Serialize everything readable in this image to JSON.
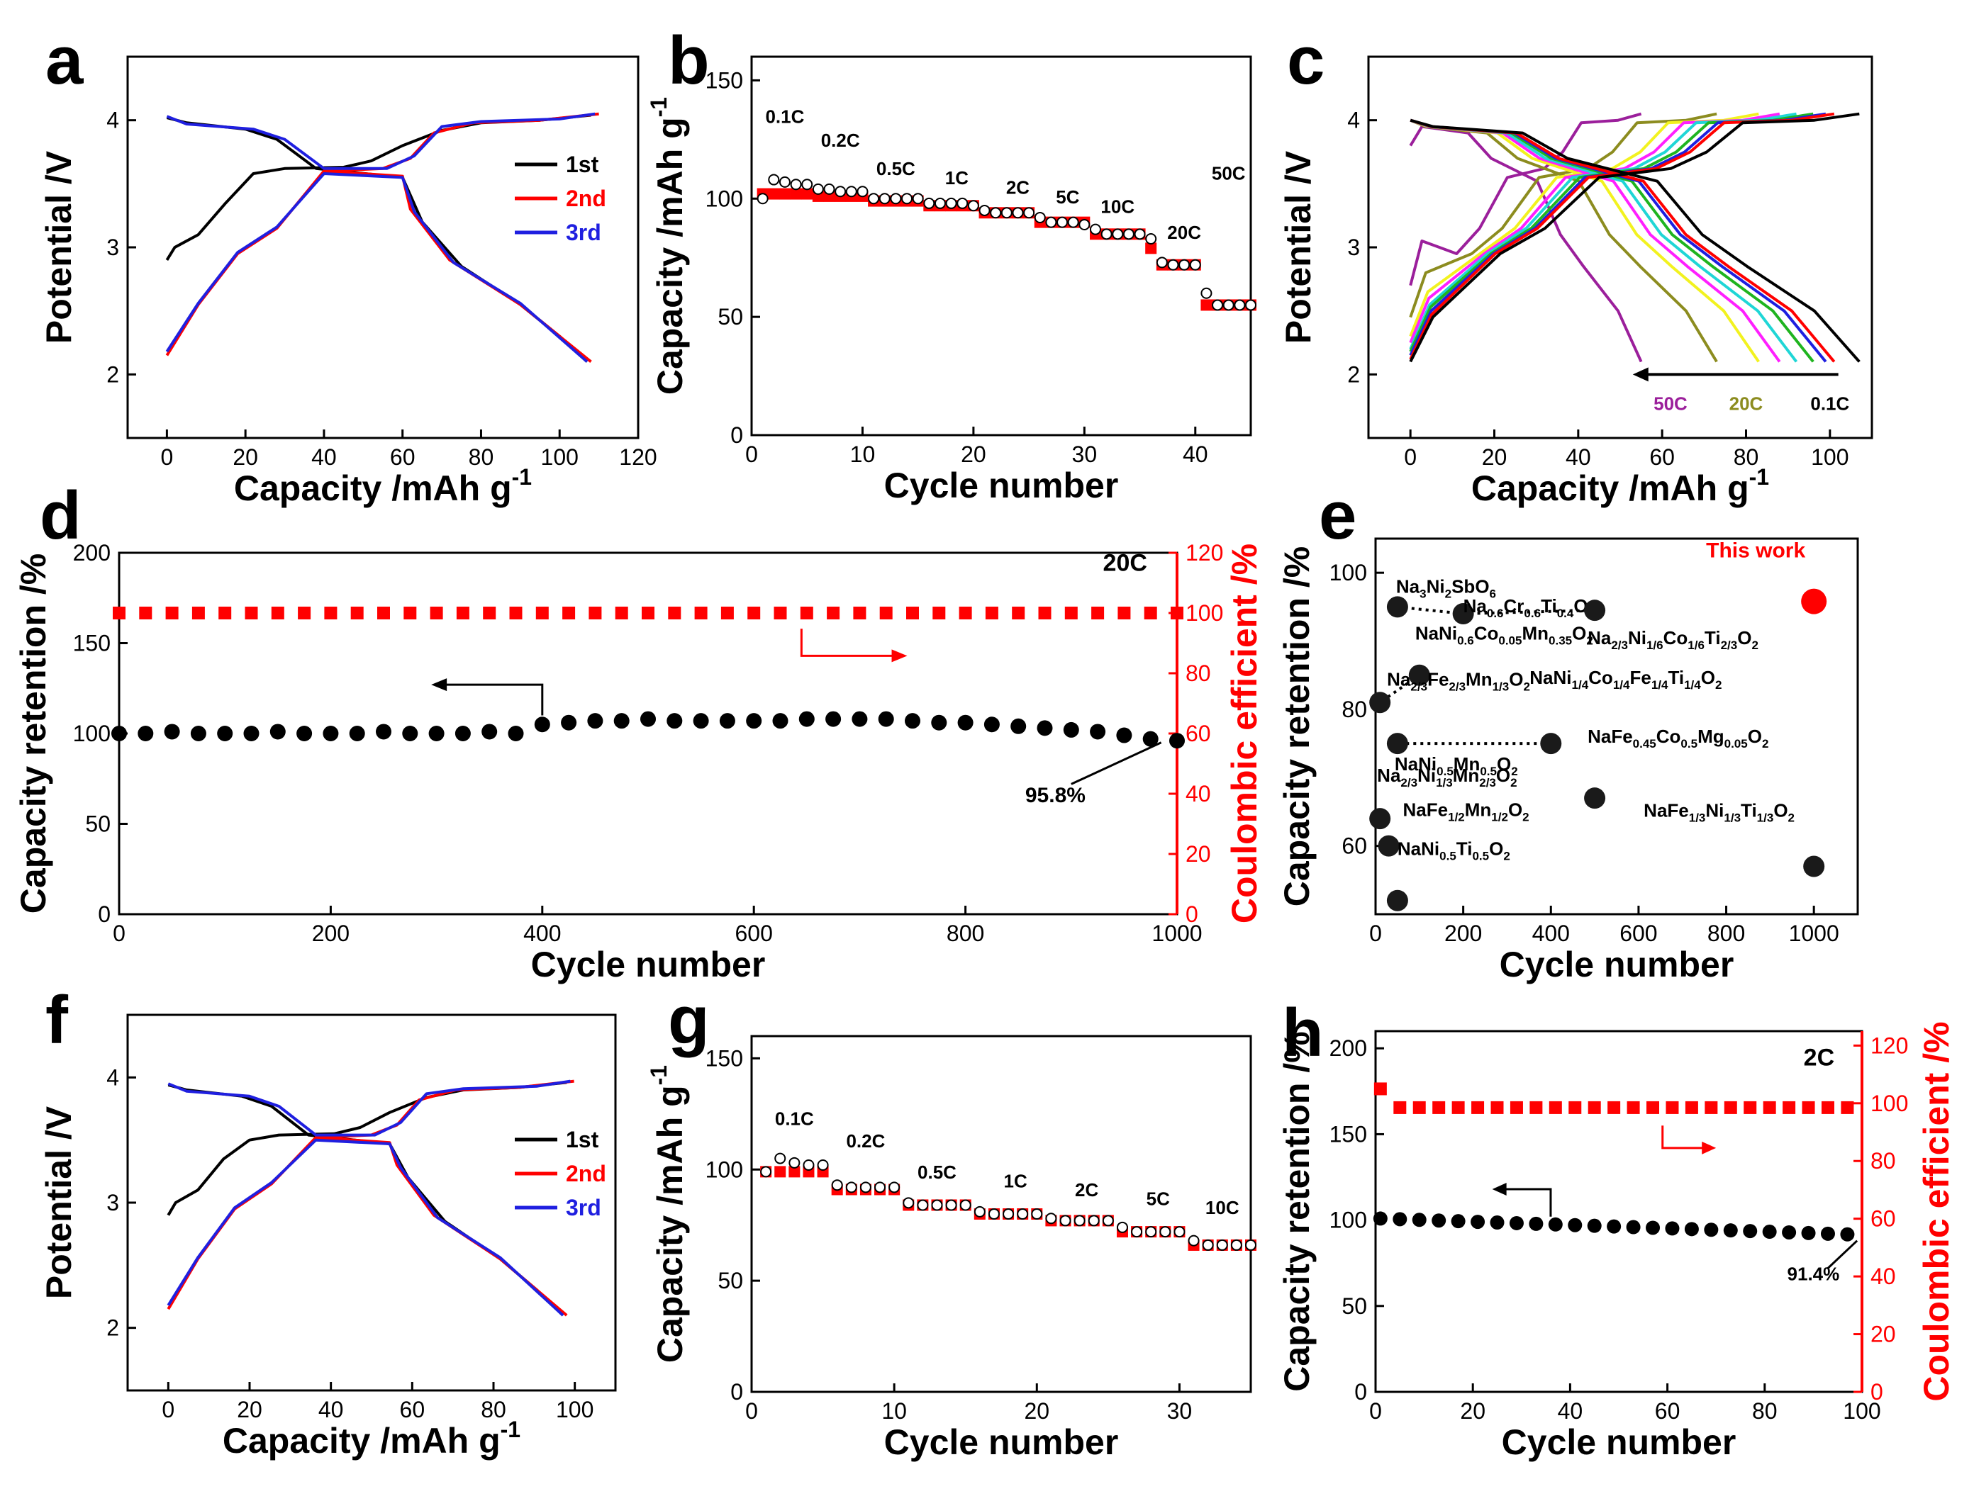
{
  "colors": {
    "black": "#000000",
    "red": "#ff0000",
    "blue": "#1f1fe0",
    "purple": "#9b1f9b",
    "olive": "#8c8c1f",
    "yellow": "#f2f21f",
    "magenta": "#ff1fff",
    "cyan": "#1fd6d6",
    "green": "#1fb41f"
  },
  "chart_data": [
    {
      "id": "a",
      "type": "line",
      "letter": "a",
      "title": "",
      "xlabel": "Capacity /mAh g",
      "xlabel_sup": "-1",
      "ylabel": "Potential /V",
      "xlim": [
        -10,
        120
      ],
      "ylim": [
        1.5,
        4.5
      ],
      "xticks": [
        0,
        20,
        40,
        60,
        80,
        100,
        120
      ],
      "yticks": [
        2,
        3,
        4
      ],
      "legend": [
        "1st",
        "2nd",
        "3rd"
      ],
      "series": [
        {
          "name": "1st",
          "color": "#000000",
          "points": [
            [
              0,
              2.9
            ],
            [
              2,
              3.0
            ],
            [
              8,
              3.1
            ],
            [
              15,
              3.35
            ],
            [
              22,
              3.58
            ],
            [
              30,
              3.62
            ],
            [
              45,
              3.63
            ],
            [
              52,
              3.68
            ],
            [
              60,
              3.8
            ],
            [
              70,
              3.92
            ],
            [
              80,
              3.98
            ],
            [
              95,
              4.0
            ],
            [
              108,
              4.04
            ]
          ]
        },
        {
          "name": "1st-d",
          "color": "#000000",
          "points": [
            [
              0,
              4.02
            ],
            [
              5,
              3.98
            ],
            [
              20,
              3.93
            ],
            [
              28,
              3.85
            ],
            [
              38,
              3.62
            ],
            [
              60,
              3.55
            ],
            [
              65,
              3.2
            ],
            [
              75,
              2.85
            ],
            [
              90,
              2.55
            ],
            [
              100,
              2.3
            ],
            [
              107,
              2.1
            ]
          ]
        },
        {
          "name": "2nd",
          "color": "#ff0000",
          "points": [
            [
              0,
              2.15
            ],
            [
              8,
              2.55
            ],
            [
              18,
              2.95
            ],
            [
              28,
              3.15
            ],
            [
              40,
              3.6
            ],
            [
              60,
              3.56
            ],
            [
              62,
              3.3
            ],
            [
              72,
              2.9
            ],
            [
              90,
              2.55
            ],
            [
              100,
              2.3
            ],
            [
              108,
              2.1
            ]
          ]
        },
        {
          "name": "2nd-c",
          "color": "#ff0000",
          "points": [
            [
              40,
              3.6
            ],
            [
              55,
              3.62
            ],
            [
              62,
              3.7
            ],
            [
              68,
              3.9
            ],
            [
              78,
              3.98
            ],
            [
              95,
              4.0
            ],
            [
              110,
              4.05
            ]
          ]
        },
        {
          "name": "3rd",
          "color": "#1f1fe0",
          "points": [
            [
              0,
              2.18
            ],
            [
              8,
              2.56
            ],
            [
              18,
              2.96
            ],
            [
              28,
              3.16
            ],
            [
              40,
              3.58
            ],
            [
              60,
              3.55
            ],
            [
              63,
              3.28
            ],
            [
              73,
              2.88
            ],
            [
              90,
              2.56
            ],
            [
              107,
              2.1
            ]
          ]
        },
        {
          "name": "3rd-c",
          "color": "#1f1fe0",
          "points": [
            [
              0,
              4.03
            ],
            [
              5,
              3.97
            ],
            [
              22,
              3.93
            ],
            [
              30,
              3.85
            ],
            [
              40,
              3.62
            ],
            [
              56,
              3.62
            ],
            [
              63,
              3.72
            ],
            [
              70,
              3.95
            ],
            [
              80,
              3.99
            ],
            [
              100,
              4.01
            ],
            [
              109,
              4.05
            ]
          ]
        }
      ]
    },
    {
      "id": "b",
      "type": "scatter",
      "letter": "b",
      "xlabel": "Cycle number",
      "ylabel": "Capacity /mAh g",
      "ylabel_sup": "-1",
      "xlim": [
        0,
        45
      ],
      "ylim": [
        0,
        160
      ],
      "xticks": [
        0,
        10,
        20,
        30,
        40
      ],
      "yticks": [
        0,
        50,
        100,
        150
      ],
      "rate_labels": [
        [
          "0.1C",
          3,
          132
        ],
        [
          "0.2C",
          8,
          122
        ],
        [
          "0.5C",
          13,
          110
        ],
        [
          "1C",
          18.5,
          106
        ],
        [
          "2C",
          24,
          102
        ],
        [
          "5C",
          28.5,
          98
        ],
        [
          "10C",
          33,
          94
        ],
        [
          "20C",
          39,
          83
        ],
        [
          "50C",
          43,
          108
        ]
      ],
      "discharge": [
        102,
        102,
        102,
        102,
        102,
        101,
        101,
        101,
        101,
        101,
        99,
        99,
        99,
        99,
        99,
        97,
        97,
        97,
        97,
        97,
        94,
        94,
        94,
        94,
        94,
        90,
        90,
        90,
        90,
        90,
        85,
        85,
        85,
        85,
        85,
        79,
        72,
        72,
        72,
        72,
        55,
        55,
        55,
        55,
        55
      ],
      "charge": [
        100,
        108,
        107,
        106,
        106,
        104,
        104,
        103,
        103,
        103,
        100,
        100,
        100,
        100,
        100,
        98,
        98,
        98,
        98,
        97,
        95,
        94,
        94,
        94,
        94,
        92,
        90,
        90,
        90,
        89,
        87,
        85,
        85,
        85,
        85,
        83,
        73,
        72,
        72,
        72,
        60,
        55,
        55,
        55,
        55
      ]
    },
    {
      "id": "c",
      "type": "line",
      "letter": "c",
      "xlabel": "Capacity /mAh g",
      "xlabel_sup": "-1",
      "ylabel": "Potential /V",
      "xlim": [
        -10,
        110
      ],
      "ylim": [
        1.5,
        4.5
      ],
      "xticks": [
        0,
        20,
        40,
        60,
        80,
        100
      ],
      "yticks": [
        2,
        3,
        4
      ],
      "rate_labels": [
        "50C",
        "20C",
        "0.1C"
      ],
      "curves": [
        {
          "color": "#9b1f9b",
          "cap": 55,
          "start": 2.7
        },
        {
          "color": "#8c8c1f",
          "cap": 73,
          "start": 2.45
        },
        {
          "color": "#f2f21f",
          "cap": 83,
          "start": 2.3
        },
        {
          "color": "#ff1fff",
          "cap": 88,
          "start": 2.25
        },
        {
          "color": "#1fd6d6",
          "cap": 92,
          "start": 2.2
        },
        {
          "color": "#1fb41f",
          "cap": 96,
          "start": 2.18
        },
        {
          "color": "#1f1fe0",
          "cap": 99,
          "start": 2.15
        },
        {
          "color": "#ff0000",
          "cap": 101,
          "start": 2.12
        },
        {
          "color": "#000000",
          "cap": 107,
          "start": 2.1
        }
      ]
    },
    {
      "id": "d",
      "type": "scatter",
      "letter": "d",
      "xlabel": "Cycle number",
      "ylabel": "Capacity retention /%",
      "y2label": "Coulombic efficient /%",
      "xlim": [
        0,
        1000
      ],
      "ylim": [
        0,
        200
      ],
      "y2lim": [
        0,
        120
      ],
      "xticks": [
        0,
        200,
        400,
        600,
        800,
        1000
      ],
      "yticks": [
        0,
        50,
        100,
        150,
        200
      ],
      "y2ticks": [
        0,
        20,
        40,
        60,
        80,
        100,
        120
      ],
      "rate": "20C",
      "annotation": "95.8%",
      "retention": [
        [
          0,
          100
        ],
        [
          25,
          100
        ],
        [
          50,
          101
        ],
        [
          75,
          100
        ],
        [
          100,
          100
        ],
        [
          125,
          100
        ],
        [
          150,
          101
        ],
        [
          175,
          100
        ],
        [
          200,
          100
        ],
        [
          225,
          100
        ],
        [
          250,
          101
        ],
        [
          275,
          100
        ],
        [
          300,
          100
        ],
        [
          325,
          100
        ],
        [
          350,
          101
        ],
        [
          375,
          100
        ],
        [
          400,
          105
        ],
        [
          425,
          106
        ],
        [
          450,
          107
        ],
        [
          475,
          107
        ],
        [
          500,
          108
        ],
        [
          525,
          107
        ],
        [
          550,
          107
        ],
        [
          575,
          107
        ],
        [
          600,
          107
        ],
        [
          625,
          107
        ],
        [
          650,
          108
        ],
        [
          675,
          108
        ],
        [
          700,
          108
        ],
        [
          725,
          108
        ],
        [
          750,
          107
        ],
        [
          775,
          106
        ],
        [
          800,
          106
        ],
        [
          825,
          105
        ],
        [
          850,
          104
        ],
        [
          875,
          103
        ],
        [
          900,
          102
        ],
        [
          925,
          101
        ],
        [
          950,
          99
        ],
        [
          975,
          97
        ],
        [
          1000,
          96
        ]
      ],
      "efficiency_value": 100
    },
    {
      "id": "e",
      "type": "scatter",
      "letter": "e",
      "xlabel": "Cycle number",
      "ylabel": "Capacity retention /%",
      "xlim": [
        0,
        1100
      ],
      "ylim": [
        50,
        105
      ],
      "xticks": [
        0,
        200,
        400,
        600,
        800,
        1000
      ],
      "yticks": [
        60,
        80,
        100
      ],
      "points": [
        {
          "x": 50,
          "y": 95,
          "label": "Na3Ni2SbO6",
          "html": [
            "Na",
            "3",
            "Ni",
            "2",
            "SbO",
            "6"
          ]
        },
        {
          "x": 200,
          "y": 94,
          "label": "Na0.6Cr0.6Ti0.4O2",
          "html": [
            "Na",
            "0.6",
            "Cr",
            "0.6",
            "Ti",
            "0.4",
            "O",
            "2"
          ]
        },
        {
          "x": 500,
          "y": 94.5,
          "label": "Na2/3Ni1/6Co1/6Ti2/3O2",
          "html": [
            "Na",
            "2/3",
            "Ni",
            "1/6",
            "Co",
            "1/6",
            "Ti",
            "2/3",
            "O",
            "2"
          ]
        },
        {
          "x": 100,
          "y": 85,
          "label": "NaNi0.6Co0.05Mn0.35O2",
          "html": [
            "NaNi",
            "0.6",
            "Co",
            "0.05",
            "Mn",
            "0.35",
            "O",
            "2"
          ]
        },
        {
          "x": 10,
          "y": 81,
          "label": "Na2/3Fe2/3Mn1/3O2",
          "html": [
            "Na",
            "2/3",
            "Fe",
            "2/3",
            "Mn",
            "1/3",
            "O",
            "2"
          ]
        },
        {
          "x": 400,
          "y": 75,
          "label": "NaNi1/4Co1/4Fe1/4Ti1/4O2",
          "html": [
            "NaNi",
            "1/4",
            "Co",
            "1/4",
            "Fe",
            "1/4",
            "Ti",
            "1/4",
            "O",
            "2"
          ]
        },
        {
          "x": 50,
          "y": 75,
          "label": "NaNi0.5Mn0.5O2",
          "html": [
            "NaNi",
            "0.5",
            "Mn",
            "0.5",
            "O",
            "2"
          ]
        },
        {
          "x": 500,
          "y": 67,
          "label": "NaFe0.45Co0.5Mg0.05O2",
          "html": [
            "NaFe",
            "0.45",
            "Co",
            "0.5",
            "Mg",
            "0.05",
            "O",
            "2"
          ]
        },
        {
          "x": 10,
          "y": 64,
          "label": "Na2/3Ni1/3Mn2/3O2",
          "html": [
            "Na",
            "2/3",
            "Ni",
            "1/3",
            "Mn",
            "2/3",
            "O",
            "2"
          ]
        },
        {
          "x": 30,
          "y": 60,
          "label": "NaFe1/2Mn1/2O2",
          "html": [
            "NaFe",
            "1/2",
            "Mn",
            "1/2",
            "O",
            "2"
          ]
        },
        {
          "x": 50,
          "y": 52,
          "label": "NaNi0.5Ti0.5O2",
          "html": [
            "NaNi",
            "0.5",
            "Ti",
            "0.5",
            "O",
            "2"
          ]
        },
        {
          "x": 1000,
          "y": 57,
          "label": "NaFe1/3Ni1/3Ti1/3O2",
          "html": [
            "NaFe",
            "1/3",
            "Ni",
            "1/3",
            "Ti",
            "1/3",
            "O",
            "2"
          ]
        },
        {
          "x": 1000,
          "y": 95.8,
          "label": "This work",
          "html": [
            "This work"
          ]
        }
      ]
    },
    {
      "id": "f",
      "type": "line",
      "letter": "f",
      "xlabel": "Capacity /mAh g",
      "xlabel_sup": "-1",
      "ylabel": "Potential /V",
      "xlim": [
        -10,
        110
      ],
      "ylim": [
        1.5,
        4.5
      ],
      "xticks": [
        0,
        20,
        40,
        60,
        80,
        100
      ],
      "yticks": [
        2,
        3,
        4
      ],
      "legend": [
        "1st",
        "2nd",
        "3rd"
      ]
    },
    {
      "id": "g",
      "type": "scatter",
      "letter": "g",
      "xlabel": "Cycle number",
      "ylabel": "Capacity /mAh g",
      "ylabel_sup": "-1",
      "xlim": [
        0,
        35
      ],
      "ylim": [
        0,
        160
      ],
      "xticks": [
        0,
        10,
        20,
        30
      ],
      "yticks": [
        0,
        50,
        100,
        150
      ],
      "rate_labels": [
        [
          "0.1C",
          3,
          120
        ],
        [
          "0.2C",
          8,
          110
        ],
        [
          "0.5C",
          13,
          96
        ],
        [
          "1C",
          18.5,
          92
        ],
        [
          "2C",
          23.5,
          88
        ],
        [
          "5C",
          28.5,
          84
        ],
        [
          "10C",
          33,
          80
        ]
      ],
      "discharge": [
        99,
        99,
        99,
        99,
        99,
        91,
        91,
        91,
        91,
        91,
        84,
        84,
        84,
        84,
        84,
        80,
        80,
        80,
        80,
        80,
        77,
        77,
        77,
        77,
        77,
        72,
        72,
        72,
        72,
        72,
        66,
        66,
        66,
        66,
        66
      ],
      "charge": [
        99,
        105,
        103,
        102,
        102,
        93,
        92,
        92,
        92,
        92,
        85,
        84,
        84,
        84,
        84,
        81,
        80,
        80,
        80,
        80,
        78,
        77,
        77,
        77,
        77,
        74,
        72,
        72,
        72,
        72,
        68,
        66,
        66,
        66,
        66
      ]
    },
    {
      "id": "h",
      "type": "scatter",
      "letter": "h",
      "xlabel": "Cycle number",
      "ylabel": "Capacity retention /%",
      "y2label": "Coulombic efficient /%",
      "xlim": [
        0,
        100
      ],
      "ylim": [
        0,
        210
      ],
      "y2lim": [
        0,
        125
      ],
      "xticks": [
        0,
        20,
        40,
        60,
        80,
        100
      ],
      "yticks": [
        0,
        50,
        100,
        150,
        200
      ],
      "y2ticks": [
        0,
        20,
        40,
        60,
        80,
        100,
        120
      ],
      "rate": "2C",
      "annotation": "91.4%"
    }
  ]
}
